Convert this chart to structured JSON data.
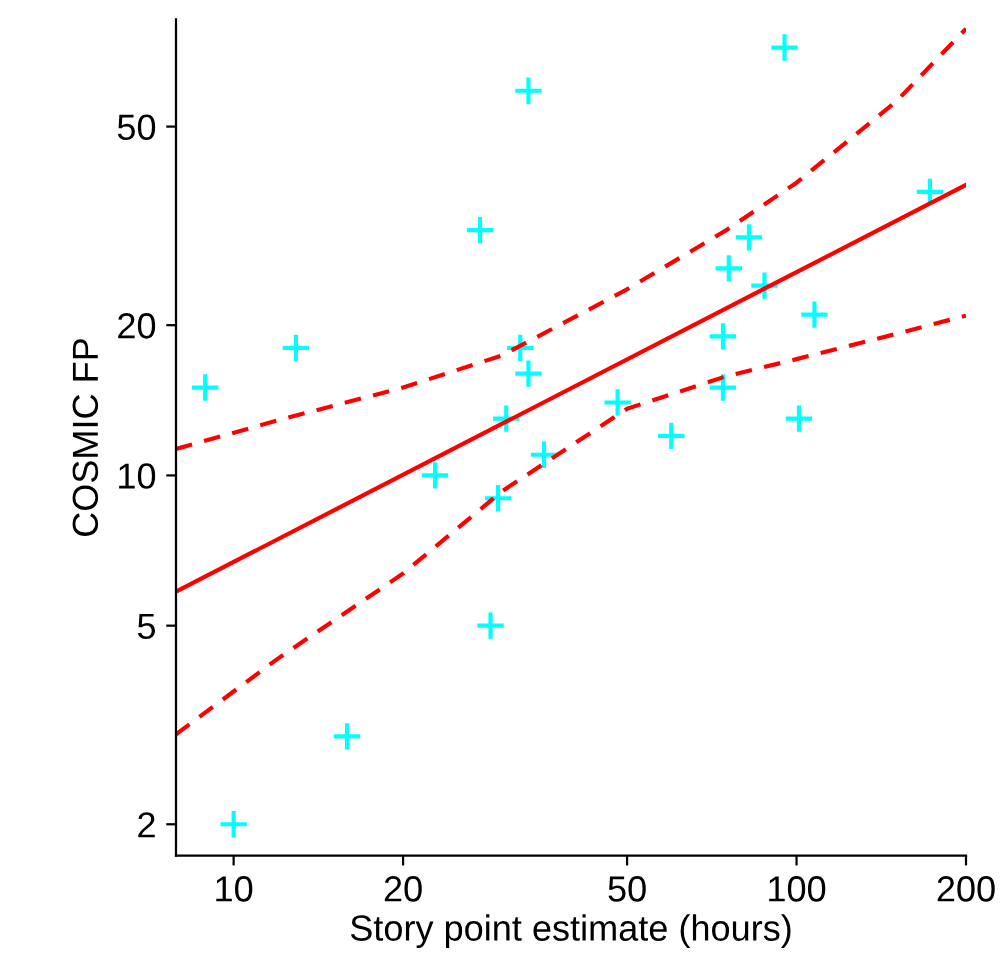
{
  "chart_data": {
    "type": "scatter",
    "xlabel": "Story point estimate (hours)",
    "ylabel": "COSMIC FP",
    "log": "xy",
    "xlim": [
      7.9,
      200
    ],
    "ylim": [
      1.73,
      82
    ],
    "xticks": [
      10,
      20,
      50,
      100,
      200
    ],
    "yticks": [
      2,
      5,
      10,
      20,
      50
    ],
    "grid": false,
    "legend": false,
    "series": [
      {
        "color": "#00ffff",
        "marker": "cross",
        "x": [
          8.9,
          12.9,
          10,
          15.9,
          22.8,
          27.4,
          28.6,
          29.5,
          30.5,
          32.3,
          33.4,
          33.4,
          35.6,
          48.1,
          59.9,
          74,
          74,
          75.8,
          82.3,
          87.7,
          95.2,
          101,
          107.6,
          172.6
        ],
        "values": [
          15,
          18,
          2,
          3,
          10,
          31,
          5,
          9,
          13,
          18,
          59,
          16,
          11,
          14,
          12,
          19,
          15,
          26,
          30,
          24,
          72,
          13,
          21,
          37
        ]
      },
      {
        "type": "line",
        "color": "#ff0000",
        "line_style": "solid",
        "marker": "none",
        "x": [
          7.9,
          200
        ],
        "values": [
          5.85,
          38.2
        ]
      },
      {
        "type": "line",
        "color": "#ff0000",
        "line_style": "dashed",
        "marker": "none",
        "x": [
          7.9,
          12,
          20,
          30,
          50,
          75,
          100,
          150,
          200
        ],
        "values": [
          11.3,
          12.9,
          15,
          17.4,
          23.6,
          31,
          38.6,
          56,
          78.5
        ]
      },
      {
        "type": "line",
        "color": "#ff0000",
        "line_style": "dashed",
        "marker": "none",
        "x": [
          7.9,
          12,
          20,
          30,
          50,
          75,
          100,
          150,
          200
        ],
        "values": [
          3.03,
          4.3,
          6.36,
          9.3,
          13.6,
          15.8,
          17.1,
          19.2,
          20.9
        ]
      }
    ]
  }
}
